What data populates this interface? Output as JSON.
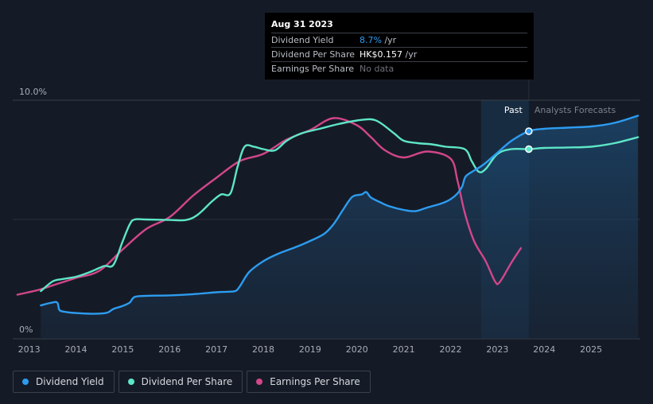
{
  "colors": {
    "dividend_yield": "#2d9cf0",
    "dividend_per_share": "#5ee6c8",
    "earnings_per_share": "#d2468a",
    "past_band": "#1b3a58",
    "grid": "#3a3f48"
  },
  "tooltip": {
    "date": "Aug 31 2023",
    "rows": [
      {
        "label": "Dividend Yield",
        "value": "8.7%",
        "unit": "/yr"
      },
      {
        "label": "Dividend Per Share",
        "value": "HK$0.157",
        "unit": "/yr"
      },
      {
        "label": "Earnings Per Share",
        "value": "No data",
        "unit": ""
      }
    ]
  },
  "legend": [
    {
      "label": "Dividend Yield",
      "color": "#2d9cf0"
    },
    {
      "label": "Dividend Per Share",
      "color": "#5ee6c8"
    },
    {
      "label": "Earnings Per Share",
      "color": "#d2468a"
    }
  ],
  "chart_data": {
    "type": "line",
    "title": "",
    "x_range": [
      2012.65,
      2026.05
    ],
    "y_range": [
      0,
      10
    ],
    "y_tick_labels": [
      {
        "value": 10,
        "label": "10.0%"
      },
      {
        "value": 0,
        "label": "0%"
      }
    ],
    "x_tick_labels": [
      "2013",
      "2014",
      "2015",
      "2016",
      "2017",
      "2018",
      "2019",
      "2020",
      "2021",
      "2022",
      "2023",
      "2024",
      "2025"
    ],
    "past_label": "Past",
    "forecast_label": "Analysts Forecasts",
    "past_band": [
      2022.65,
      2023.67
    ],
    "series": [
      {
        "name": "Dividend Yield",
        "unit": "%",
        "area": true,
        "points": [
          [
            2013.25,
            1.4
          ],
          [
            2013.45,
            1.5
          ],
          [
            2013.6,
            1.52
          ],
          [
            2013.65,
            1.2
          ],
          [
            2013.8,
            1.12
          ],
          [
            2014.0,
            1.08
          ],
          [
            2014.3,
            1.05
          ],
          [
            2014.6,
            1.07
          ],
          [
            2014.7,
            1.12
          ],
          [
            2014.8,
            1.25
          ],
          [
            2015.0,
            1.38
          ],
          [
            2015.15,
            1.52
          ],
          [
            2015.25,
            1.75
          ],
          [
            2015.5,
            1.8
          ],
          [
            2016.0,
            1.82
          ],
          [
            2016.5,
            1.87
          ],
          [
            2017.0,
            1.95
          ],
          [
            2017.2,
            1.97
          ],
          [
            2017.4,
            2.0
          ],
          [
            2017.5,
            2.2
          ],
          [
            2017.7,
            2.8
          ],
          [
            2018.0,
            3.25
          ],
          [
            2018.3,
            3.55
          ],
          [
            2018.7,
            3.85
          ],
          [
            2019.0,
            4.1
          ],
          [
            2019.3,
            4.4
          ],
          [
            2019.5,
            4.8
          ],
          [
            2019.7,
            5.4
          ],
          [
            2019.9,
            5.95
          ],
          [
            2020.1,
            6.05
          ],
          [
            2020.2,
            6.15
          ],
          [
            2020.3,
            5.92
          ],
          [
            2020.5,
            5.72
          ],
          [
            2020.7,
            5.55
          ],
          [
            2021.0,
            5.4
          ],
          [
            2021.25,
            5.35
          ],
          [
            2021.5,
            5.5
          ],
          [
            2021.8,
            5.67
          ],
          [
            2022.0,
            5.85
          ],
          [
            2022.15,
            6.1
          ],
          [
            2022.25,
            6.4
          ],
          [
            2022.32,
            6.8
          ],
          [
            2022.5,
            7.05
          ],
          [
            2022.7,
            7.3
          ],
          [
            2023.0,
            7.8
          ],
          [
            2023.3,
            8.3
          ],
          [
            2023.67,
            8.7
          ],
          [
            2024.0,
            8.8
          ],
          [
            2024.5,
            8.85
          ],
          [
            2025.0,
            8.9
          ],
          [
            2025.5,
            9.05
          ],
          [
            2026.0,
            9.35
          ]
        ]
      },
      {
        "name": "Dividend Per Share",
        "unit": "HK$",
        "area": false,
        "points": [
          [
            2013.25,
            2.0
          ],
          [
            2013.5,
            2.4
          ],
          [
            2013.7,
            2.5
          ],
          [
            2014.0,
            2.6
          ],
          [
            2014.3,
            2.8
          ],
          [
            2014.6,
            3.05
          ],
          [
            2014.8,
            3.1
          ],
          [
            2015.0,
            4.1
          ],
          [
            2015.15,
            4.8
          ],
          [
            2015.25,
            5.0
          ],
          [
            2015.5,
            5.0
          ],
          [
            2016.0,
            4.98
          ],
          [
            2016.35,
            4.98
          ],
          [
            2016.6,
            5.2
          ],
          [
            2016.9,
            5.75
          ],
          [
            2017.1,
            6.05
          ],
          [
            2017.3,
            6.1
          ],
          [
            2017.45,
            7.2
          ],
          [
            2017.6,
            8.05
          ],
          [
            2017.8,
            8.05
          ],
          [
            2018.0,
            7.95
          ],
          [
            2018.25,
            7.9
          ],
          [
            2018.5,
            8.3
          ],
          [
            2018.8,
            8.6
          ],
          [
            2019.2,
            8.8
          ],
          [
            2019.6,
            9.0
          ],
          [
            2020.0,
            9.15
          ],
          [
            2020.3,
            9.2
          ],
          [
            2020.5,
            9.05
          ],
          [
            2020.8,
            8.6
          ],
          [
            2021.0,
            8.3
          ],
          [
            2021.3,
            8.2
          ],
          [
            2021.6,
            8.15
          ],
          [
            2021.9,
            8.05
          ],
          [
            2022.3,
            7.95
          ],
          [
            2022.45,
            7.45
          ],
          [
            2022.6,
            7.0
          ],
          [
            2022.75,
            7.12
          ],
          [
            2023.0,
            7.75
          ],
          [
            2023.3,
            7.95
          ],
          [
            2023.67,
            7.95
          ],
          [
            2024.0,
            8.0
          ],
          [
            2024.5,
            8.02
          ],
          [
            2025.0,
            8.05
          ],
          [
            2025.5,
            8.2
          ],
          [
            2026.0,
            8.45
          ]
        ]
      },
      {
        "name": "Earnings Per Share",
        "unit": "HK$",
        "area": false,
        "points": [
          [
            2012.75,
            1.85
          ],
          [
            2013.2,
            2.05
          ],
          [
            2013.6,
            2.3
          ],
          [
            2014.0,
            2.55
          ],
          [
            2014.5,
            2.85
          ],
          [
            2015.0,
            3.75
          ],
          [
            2015.5,
            4.6
          ],
          [
            2016.0,
            5.1
          ],
          [
            2016.5,
            6.0
          ],
          [
            2017.0,
            6.75
          ],
          [
            2017.5,
            7.45
          ],
          [
            2018.0,
            7.75
          ],
          [
            2018.5,
            8.35
          ],
          [
            2019.0,
            8.75
          ],
          [
            2019.5,
            9.25
          ],
          [
            2020.0,
            8.95
          ],
          [
            2020.3,
            8.45
          ],
          [
            2020.6,
            7.9
          ],
          [
            2021.0,
            7.6
          ],
          [
            2021.5,
            7.85
          ],
          [
            2022.0,
            7.55
          ],
          [
            2022.15,
            6.6
          ],
          [
            2022.3,
            5.3
          ],
          [
            2022.5,
            4.1
          ],
          [
            2022.75,
            3.25
          ],
          [
            2022.95,
            2.4
          ],
          [
            2023.05,
            2.38
          ],
          [
            2023.3,
            3.2
          ],
          [
            2023.5,
            3.8
          ]
        ]
      }
    ],
    "markers": [
      {
        "series": "Dividend Yield",
        "x": 2023.67,
        "y": 8.7
      },
      {
        "series": "Dividend Per Share",
        "x": 2023.67,
        "y": 7.95
      }
    ]
  }
}
